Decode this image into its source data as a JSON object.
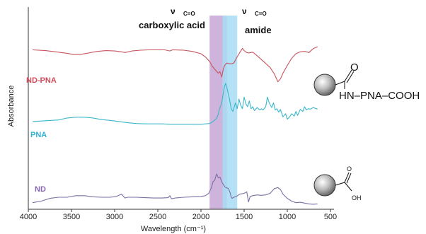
{
  "chart_data": {
    "type": "line",
    "title": "",
    "xlabel": "Wavelength (cm⁻¹)",
    "ylabel": "Absorbance",
    "xlim": [
      4000,
      500
    ],
    "x_reversed": true,
    "xticks": [
      {
        "value": 4000,
        "label": "4000"
      },
      {
        "value": 3500,
        "label": "3500"
      },
      {
        "value": 3000,
        "label": "3000"
      },
      {
        "value": 2500,
        "label": "2500"
      },
      {
        "value": 2000,
        "label": "2000"
      },
      {
        "value": 1500,
        "label": "1500"
      },
      {
        "value": 1000,
        "label": "1000"
      },
      {
        "value": 500,
        "label": "500"
      }
    ],
    "grid": false,
    "bands": [
      {
        "from": 1900,
        "to": 1700,
        "color": "#c5a6d6",
        "label_nu": "ν",
        "label_sub": "C=O",
        "label": "carboxylic acid"
      },
      {
        "from": 1750,
        "to": 1580,
        "color": "#a7dcf3",
        "label_nu": "ν",
        "label_sub": "C=O",
        "label": "amide"
      }
    ],
    "series": [
      {
        "name": "ND-PNA",
        "color": "#c85560",
        "label_color": "#d04a5a",
        "points": [
          [
            3950,
            130
          ],
          [
            3800,
            128
          ],
          [
            3650,
            124
          ],
          [
            3550,
            121
          ],
          [
            3480,
            118
          ],
          [
            3400,
            118
          ],
          [
            3300,
            122
          ],
          [
            3200,
            126
          ],
          [
            3100,
            128
          ],
          [
            3000,
            127
          ],
          [
            2920,
            125
          ],
          [
            2880,
            123
          ],
          [
            2800,
            127
          ],
          [
            2700,
            129
          ],
          [
            2600,
            130
          ],
          [
            2500,
            130
          ],
          [
            2420,
            130
          ],
          [
            2360,
            127
          ],
          [
            2330,
            130
          ],
          [
            2200,
            129
          ],
          [
            2100,
            126
          ],
          [
            2000,
            120
          ],
          [
            1950,
            112
          ],
          [
            1900,
            100
          ],
          [
            1870,
            88
          ],
          [
            1840,
            80
          ],
          [
            1800,
            70
          ],
          [
            1780,
            74
          ],
          [
            1760,
            60
          ],
          [
            1740,
            82
          ],
          [
            1720,
            92
          ],
          [
            1700,
            96
          ],
          [
            1680,
            95
          ],
          [
            1650,
            94
          ],
          [
            1620,
            96
          ],
          [
            1600,
            104
          ],
          [
            1580,
            112
          ],
          [
            1550,
            123
          ],
          [
            1520,
            134
          ],
          [
            1500,
            128
          ],
          [
            1470,
            123
          ],
          [
            1450,
            122
          ],
          [
            1400,
            124
          ],
          [
            1350,
            115
          ],
          [
            1300,
            105
          ],
          [
            1250,
            95
          ],
          [
            1200,
            85
          ],
          [
            1150,
            68
          ],
          [
            1110,
            48
          ],
          [
            1080,
            55
          ],
          [
            1050,
            70
          ],
          [
            1000,
            90
          ],
          [
            950,
            108
          ],
          [
            900,
            120
          ],
          [
            850,
            125
          ],
          [
            800,
            126
          ],
          [
            750,
            123
          ],
          [
            700,
            133
          ],
          [
            650,
            138
          ]
        ]
      },
      {
        "name": "PNA",
        "color": "#3ab6c9",
        "label_color": "#2fb2d0",
        "points": [
          [
            3950,
            62
          ],
          [
            3800,
            64
          ],
          [
            3650,
            66
          ],
          [
            3550,
            71
          ],
          [
            3450,
            73
          ],
          [
            3350,
            73
          ],
          [
            3250,
            71
          ],
          [
            3150,
            67
          ],
          [
            3050,
            65
          ],
          [
            2950,
            62
          ],
          [
            2850,
            59
          ],
          [
            2750,
            57
          ],
          [
            2650,
            56
          ],
          [
            2550,
            56
          ],
          [
            2450,
            56
          ],
          [
            2350,
            55
          ],
          [
            2250,
            55
          ],
          [
            2100,
            55
          ],
          [
            2000,
            55
          ],
          [
            1900,
            57
          ],
          [
            1860,
            62
          ],
          [
            1820,
            70
          ],
          [
            1800,
            80
          ],
          [
            1790,
            90
          ],
          [
            1760,
            110
          ],
          [
            1730,
            150
          ],
          [
            1715,
            160
          ],
          [
            1700,
            150
          ],
          [
            1690,
            140
          ],
          [
            1670,
            120
          ],
          [
            1650,
            95
          ],
          [
            1630,
            88
          ],
          [
            1600,
            110
          ],
          [
            1580,
            95
          ],
          [
            1560,
            120
          ],
          [
            1540,
            104
          ],
          [
            1520,
            95
          ],
          [
            1500,
            125
          ],
          [
            1480,
            108
          ],
          [
            1460,
            100
          ],
          [
            1440,
            115
          ],
          [
            1420,
            95
          ],
          [
            1400,
            100
          ],
          [
            1380,
            90
          ],
          [
            1350,
            98
          ],
          [
            1320,
            92
          ],
          [
            1300,
            95
          ],
          [
            1280,
            92
          ],
          [
            1250,
            100
          ],
          [
            1230,
            125
          ],
          [
            1210,
            110
          ],
          [
            1180,
            98
          ],
          [
            1160,
            110
          ],
          [
            1140,
            92
          ],
          [
            1120,
            95
          ],
          [
            1100,
            86
          ],
          [
            1080,
            93
          ],
          [
            1050,
            74
          ],
          [
            1020,
            82
          ],
          [
            1000,
            68
          ],
          [
            970,
            75
          ],
          [
            950,
            82
          ],
          [
            920,
            76
          ],
          [
            900,
            88
          ],
          [
            880,
            78
          ],
          [
            850,
            93
          ],
          [
            820,
            88
          ],
          [
            800,
            100
          ],
          [
            780,
            92
          ],
          [
            760,
            95
          ],
          [
            730,
            94
          ],
          [
            700,
            98
          ],
          [
            650,
            94
          ]
        ]
      },
      {
        "name": "ND",
        "color": "#7b6fa4",
        "label_color": "#8a66b6",
        "points": [
          [
            3950,
            6
          ],
          [
            3850,
            10
          ],
          [
            3750,
            17
          ],
          [
            3650,
            20
          ],
          [
            3550,
            20
          ],
          [
            3450,
            24
          ],
          [
            3350,
            24
          ],
          [
            3250,
            21
          ],
          [
            3150,
            20
          ],
          [
            3050,
            20
          ],
          [
            2980,
            22
          ],
          [
            2920,
            28
          ],
          [
            2880,
            18
          ],
          [
            2850,
            20
          ],
          [
            2750,
            20
          ],
          [
            2650,
            19
          ],
          [
            2550,
            18
          ],
          [
            2450,
            18
          ],
          [
            2380,
            19
          ],
          [
            2360,
            24
          ],
          [
            2340,
            16
          ],
          [
            2300,
            18
          ],
          [
            2200,
            20
          ],
          [
            2100,
            21
          ],
          [
            2000,
            22
          ],
          [
            1950,
            24
          ],
          [
            1910,
            30
          ],
          [
            1880,
            44
          ],
          [
            1860,
            60
          ],
          [
            1840,
            64
          ],
          [
            1820,
            80
          ],
          [
            1800,
            70
          ],
          [
            1780,
            72
          ],
          [
            1760,
            60
          ],
          [
            1740,
            52
          ],
          [
            1720,
            46
          ],
          [
            1700,
            44
          ],
          [
            1680,
            42
          ],
          [
            1660,
            30
          ],
          [
            1650,
            20
          ],
          [
            1640,
            17
          ],
          [
            1620,
            20
          ],
          [
            1590,
            22
          ],
          [
            1550,
            28
          ],
          [
            1500,
            30
          ],
          [
            1470,
            34
          ],
          [
            1450,
            8
          ],
          [
            1430,
            22
          ],
          [
            1400,
            24
          ],
          [
            1350,
            26
          ],
          [
            1300,
            25
          ],
          [
            1250,
            26
          ],
          [
            1200,
            30
          ],
          [
            1150,
            42
          ],
          [
            1110,
            45
          ],
          [
            1080,
            40
          ],
          [
            1050,
            28
          ],
          [
            1000,
            17
          ],
          [
            950,
            10
          ],
          [
            900,
            6
          ],
          [
            850,
            7
          ],
          [
            800,
            5
          ],
          [
            750,
            3
          ],
          [
            700,
            2
          ],
          [
            650,
            3
          ]
        ]
      }
    ]
  },
  "structures": {
    "top": {
      "text": "HN–PNA–COOH",
      "o_label": "O"
    },
    "bottom": {
      "o_label": "O",
      "oh_label": "OH"
    }
  }
}
